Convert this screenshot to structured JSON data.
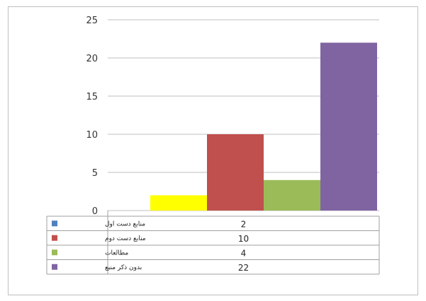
{
  "chart_data": {
    "type": "bar",
    "categories": [
      "منابع دست اول",
      "منابع دست دوم",
      "مطالعات",
      "بدون ذکر منبع"
    ],
    "values": [
      2,
      10,
      4,
      22
    ],
    "ylim": [
      0,
      25
    ],
    "yticks": [
      0,
      5,
      10,
      15,
      20,
      25
    ],
    "grid": true,
    "legend": "data-table-below",
    "colors": [
      "#ffff00",
      "#c0504d",
      "#9bbb59",
      "#8064a2"
    ],
    "legend_key_colors": [
      "#4f81bd",
      "#c0504d",
      "#9bbb59",
      "#8064a2"
    ],
    "title": "",
    "xlabel": "",
    "ylabel": ""
  }
}
